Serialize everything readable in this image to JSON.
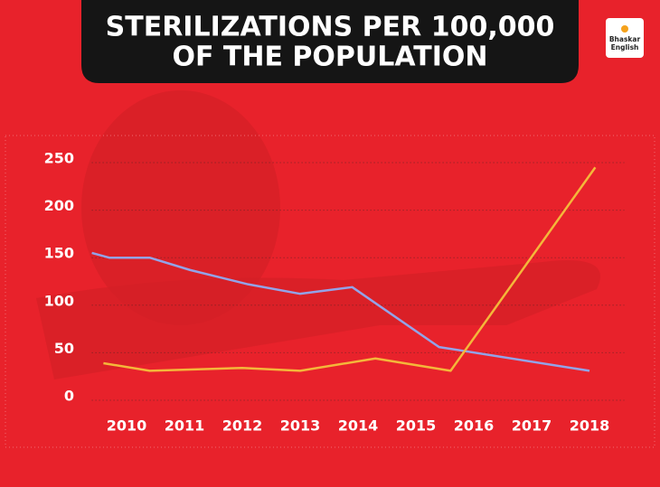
{
  "chart_data": {
    "type": "line",
    "title_lines": [
      "STERILIZATIONS PER 100,000",
      "OF THE POPULATION"
    ],
    "logo_lines": [
      "Bhaskar",
      "English"
    ],
    "series": [
      {
        "color": "#93a3e8",
        "x": [
          2009.4,
          2009.7,
          2010.4,
          2011.1,
          2012.1,
          2013.0,
          2013.9,
          2015.4,
          2018.0
        ],
        "values": [
          155,
          150,
          150,
          137,
          122,
          112,
          119,
          56,
          31
        ]
      },
      {
        "color": "#f4b73a",
        "x": [
          2009.6,
          2010.4,
          2012.0,
          2013.0,
          2014.3,
          2015.6,
          2018.1
        ],
        "values": [
          39,
          31,
          34,
          31,
          44,
          31,
          245
        ]
      }
    ],
    "xlim": [
      2009.4,
      2018.6
    ],
    "xticks": [
      2010,
      2011,
      2012,
      2013,
      2014,
      2015,
      2016,
      2017,
      2018
    ],
    "ylim": [
      0,
      250
    ],
    "yticks": [
      0,
      50,
      100,
      150,
      200,
      250
    ],
    "grid": true
  }
}
